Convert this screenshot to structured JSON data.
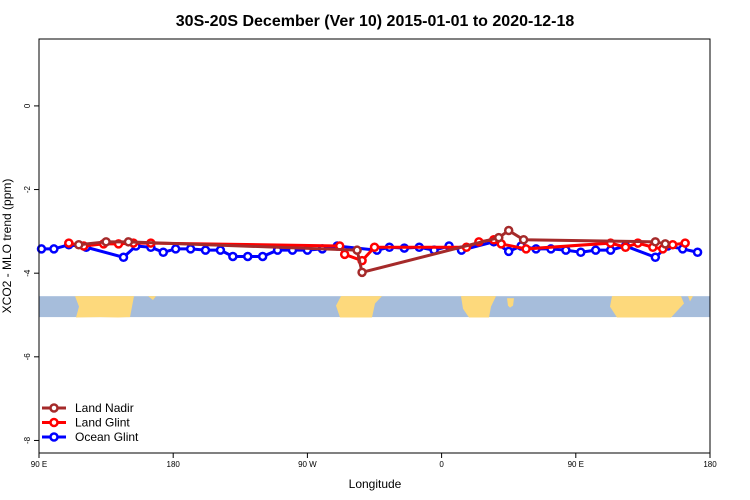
{
  "chart_data": {
    "type": "line",
    "title": "30S-20S December (Ver 10)   2015-01-01 to 2020-12-18",
    "xlabel": "Longitude",
    "ylabel": "XCO2 - MLO trend (ppm)",
    "xlim": [
      -90,
      180
    ],
    "ylim": [
      -8.3,
      1.6
    ],
    "x_ticks": [
      {
        "value": -90,
        "label": "90 E"
      },
      {
        "value": -36,
        "label": "180"
      },
      {
        "value": 18,
        "label": "90 W"
      },
      {
        "value": 72,
        "label": "0"
      },
      {
        "value": 126,
        "label": "90 E"
      },
      {
        "value": 180,
        "label": "180"
      }
    ],
    "y_ticks": [
      {
        "value": 0,
        "label": "0"
      },
      {
        "value": -2,
        "label": "-2"
      },
      {
        "value": -4,
        "label": "-4"
      },
      {
        "value": -6,
        "label": "-6"
      },
      {
        "value": -8,
        "label": "-8"
      }
    ],
    "grid": false,
    "legend_position": "bottom-left",
    "map_strip": {
      "y_top": -4.55,
      "y_bottom": -5.05,
      "ocean_color": "#a6bddb",
      "land_color": "#fdd97c"
    },
    "series": [
      {
        "name": "Land Nadir",
        "color": "#a52a2a",
        "points": [
          [
            -74,
            -3.32
          ],
          [
            -63,
            -3.25
          ],
          [
            -54,
            -3.25
          ],
          [
            38,
            -3.45
          ],
          [
            40,
            -3.98
          ],
          [
            95,
            -3.15
          ],
          [
            99,
            -2.98
          ],
          [
            105,
            -3.2
          ],
          [
            158,
            -3.25
          ],
          [
            162,
            -3.3
          ]
        ]
      },
      {
        "name": "Land Glint",
        "color": "#ff0000",
        "points": [
          [
            -78,
            -3.28
          ],
          [
            -72,
            -3.35
          ],
          [
            -64,
            -3.3
          ],
          [
            -58,
            -3.3
          ],
          [
            -52,
            -3.28
          ],
          [
            -45,
            -3.28
          ],
          [
            31,
            -3.35
          ],
          [
            33,
            -3.55
          ],
          [
            40,
            -3.7
          ],
          [
            45,
            -3.38
          ],
          [
            82,
            -3.38
          ],
          [
            87,
            -3.25
          ],
          [
            93,
            -3.2
          ],
          [
            96,
            -3.3
          ],
          [
            106,
            -3.42
          ],
          [
            140,
            -3.28
          ],
          [
            146,
            -3.38
          ],
          [
            151,
            -3.28
          ],
          [
            157,
            -3.38
          ],
          [
            161,
            -3.42
          ],
          [
            165,
            -3.32
          ],
          [
            170,
            -3.28
          ]
        ]
      },
      {
        "name": "Ocean Glint",
        "color": "#0000ff",
        "points": [
          [
            -89,
            -3.42
          ],
          [
            -84,
            -3.42
          ],
          [
            -78,
            -3.32
          ],
          [
            -71,
            -3.38
          ],
          [
            -56,
            -3.62
          ],
          [
            -51,
            -3.35
          ],
          [
            -45,
            -3.38
          ],
          [
            -40,
            -3.5
          ],
          [
            -35,
            -3.42
          ],
          [
            -29,
            -3.42
          ],
          [
            -23,
            -3.45
          ],
          [
            -17,
            -3.45
          ],
          [
            -12,
            -3.6
          ],
          [
            -6,
            -3.6
          ],
          [
            0,
            -3.6
          ],
          [
            6,
            -3.45
          ],
          [
            12,
            -3.45
          ],
          [
            18,
            -3.45
          ],
          [
            24,
            -3.42
          ],
          [
            30,
            -3.35
          ],
          [
            46,
            -3.45
          ],
          [
            51,
            -3.38
          ],
          [
            57,
            -3.4
          ],
          [
            63,
            -3.38
          ],
          [
            69,
            -3.45
          ],
          [
            75,
            -3.35
          ],
          [
            80,
            -3.45
          ],
          [
            93,
            -3.25
          ],
          [
            99,
            -3.48
          ],
          [
            104,
            -3.35
          ],
          [
            110,
            -3.42
          ],
          [
            116,
            -3.42
          ],
          [
            122,
            -3.45
          ],
          [
            128,
            -3.5
          ],
          [
            134,
            -3.45
          ],
          [
            140,
            -3.45
          ],
          [
            146,
            -3.35
          ],
          [
            158,
            -3.62
          ],
          [
            163,
            -3.35
          ],
          [
            169,
            -3.42
          ],
          [
            175,
            -3.5
          ]
        ]
      }
    ]
  }
}
